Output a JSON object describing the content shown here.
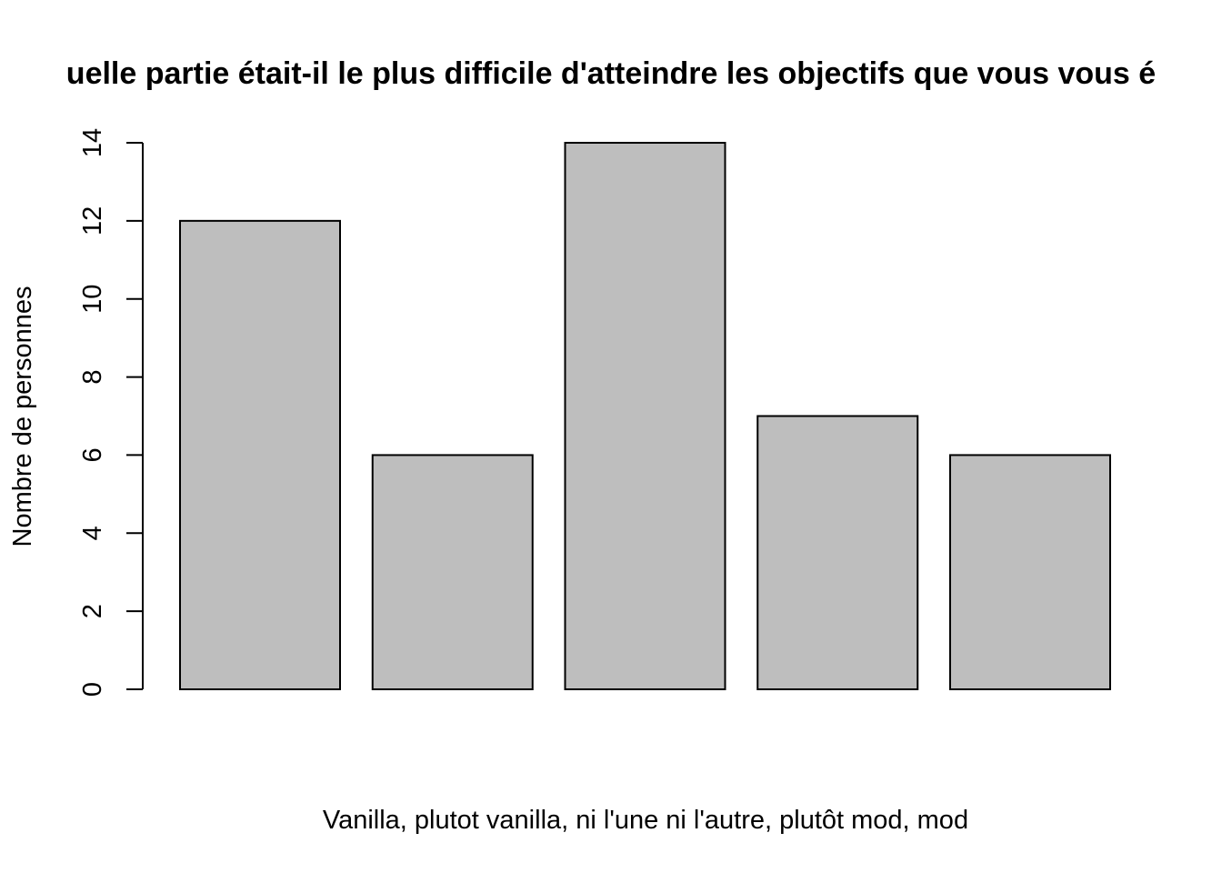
{
  "chart_data": {
    "type": "bar",
    "title": "uelle partie était-il le plus difficile d'atteindre les objectifs que vous vous é",
    "xlabel": "Vanilla, plutot vanilla, ni l'une ni l'autre, plutôt mod, mod",
    "ylabel": "Nombre de personnes",
    "values": [
      12,
      6,
      14,
      7,
      6
    ],
    "ylim": [
      0,
      14
    ],
    "yticks": [
      0,
      2,
      4,
      6,
      8,
      10,
      12,
      14
    ],
    "bar_color": "#bebebe",
    "border_color": "#000000",
    "grid": false,
    "legend": "none"
  }
}
